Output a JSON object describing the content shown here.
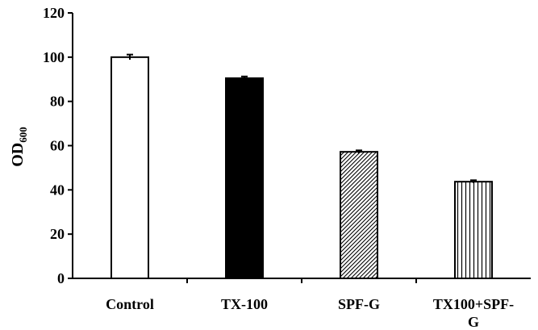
{
  "chart_data": {
    "type": "bar",
    "categories": [
      "Control",
      "TX-100",
      "SPF-G",
      "TX100+SPF-G"
    ],
    "category_label_lines": [
      [
        "Control"
      ],
      [
        "TX-100"
      ],
      [
        "SPF-G"
      ],
      [
        "TX100+SPF-",
        "G"
      ]
    ],
    "values": [
      100,
      90.5,
      57.2,
      43.7
    ],
    "errors": [
      0.8,
      0.4,
      0.3,
      0.3
    ],
    "bar_fills": [
      "white",
      "solid-black",
      "diagonal-hatch",
      "vertical-lines"
    ],
    "title": "",
    "xlabel": "",
    "ylabel_main": "OD",
    "ylabel_sub": "600",
    "ylim": [
      0,
      120
    ],
    "yticks": [
      0,
      20,
      40,
      60,
      80,
      100,
      120
    ],
    "grid": false,
    "legend": "none"
  }
}
